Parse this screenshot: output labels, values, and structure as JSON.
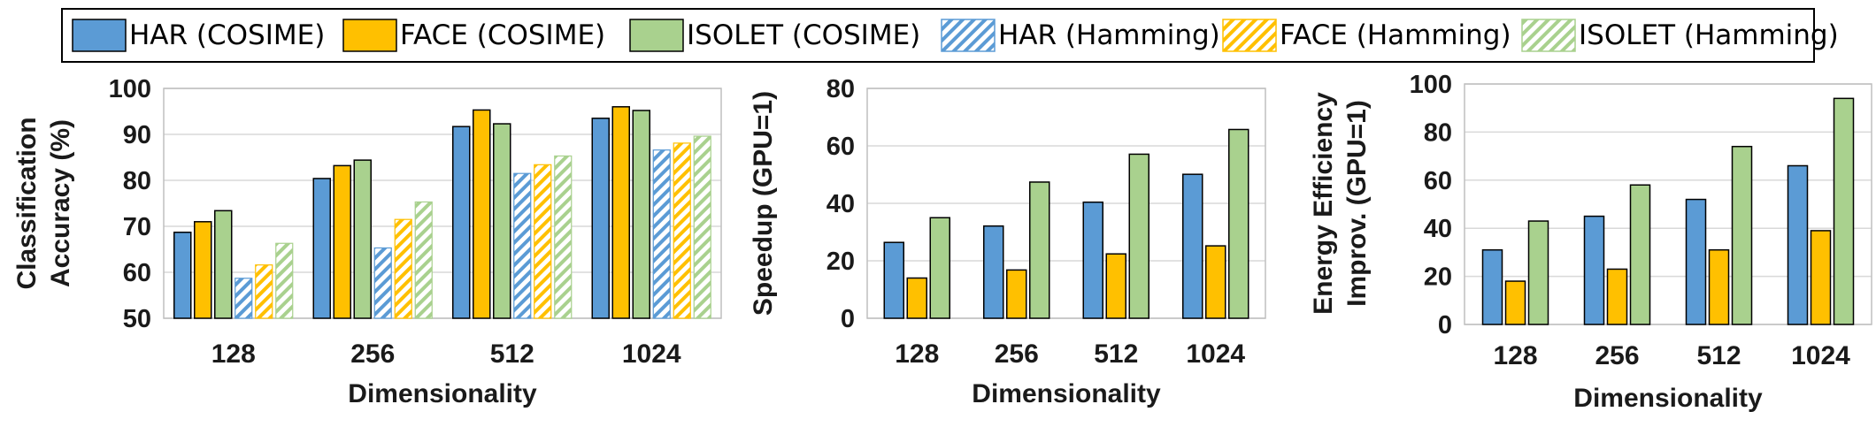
{
  "legend": [
    {
      "label": "HAR (COSIME)",
      "color": "#5b9bd5",
      "pattern": "solid",
      "icon": "solid-blue-swatch-icon"
    },
    {
      "label": "FACE (COSIME)",
      "color": "#ffc000",
      "pattern": "solid",
      "icon": "solid-yellow-swatch-icon"
    },
    {
      "label": "ISOLET (COSIME)",
      "color": "#a9d18e",
      "pattern": "solid",
      "icon": "solid-green-swatch-icon"
    },
    {
      "label": "HAR (Hamming)",
      "color": "#5b9bd5",
      "pattern": "hatch",
      "icon": "hatched-blue-swatch-icon"
    },
    {
      "label": "FACE (Hamming)",
      "color": "#ffc000",
      "pattern": "hatch",
      "icon": "hatched-yellow-swatch-icon"
    },
    {
      "label": "ISOLET (Hamming)",
      "color": "#a9d18e",
      "pattern": "hatch",
      "icon": "hatched-green-swatch-icon"
    }
  ],
  "chart_data": [
    {
      "type": "bar",
      "xlabel": "Dimensionality",
      "ylabel": [
        "Classification",
        "Accuracy (%)"
      ],
      "categories": [
        "128",
        "256",
        "512",
        "1024"
      ],
      "ylim": [
        50,
        100
      ],
      "yticks": [
        50,
        60,
        70,
        80,
        90,
        100
      ],
      "grid": true,
      "series": [
        {
          "name": "HAR (COSIME)",
          "color": "#5b9bd5",
          "pattern": "solid",
          "values": [
            68.7,
            80.4,
            91.7,
            93.5
          ]
        },
        {
          "name": "FACE (COSIME)",
          "color": "#ffc000",
          "pattern": "solid",
          "values": [
            71.0,
            83.2,
            95.3,
            96.0
          ]
        },
        {
          "name": "ISOLET (COSIME)",
          "color": "#a9d18e",
          "pattern": "solid",
          "values": [
            73.4,
            84.4,
            92.3,
            95.2
          ]
        },
        {
          "name": "HAR (Hamming)",
          "color": "#5b9bd5",
          "pattern": "hatch",
          "values": [
            58.7,
            65.3,
            81.5,
            86.6
          ]
        },
        {
          "name": "FACE (Hamming)",
          "color": "#ffc000",
          "pattern": "hatch",
          "values": [
            61.6,
            71.5,
            83.4,
            88.1
          ]
        },
        {
          "name": "ISOLET (Hamming)",
          "color": "#a9d18e",
          "pattern": "hatch",
          "values": [
            66.3,
            75.3,
            85.3,
            89.6
          ]
        }
      ]
    },
    {
      "type": "bar",
      "xlabel": "Dimensionality",
      "ylabel": [
        "Speedup (GPU=1)"
      ],
      "categories": [
        "128",
        "256",
        "512",
        "1024"
      ],
      "ylim": [
        0,
        80
      ],
      "yticks": [
        0,
        20,
        40,
        60,
        80
      ],
      "grid": true,
      "series": [
        {
          "name": "HAR (COSIME)",
          "color": "#5b9bd5",
          "pattern": "solid",
          "values": [
            26.4,
            32.1,
            40.4,
            50.1
          ]
        },
        {
          "name": "FACE (COSIME)",
          "color": "#ffc000",
          "pattern": "solid",
          "values": [
            14.0,
            16.8,
            22.4,
            25.2
          ]
        },
        {
          "name": "ISOLET (COSIME)",
          "color": "#a9d18e",
          "pattern": "solid",
          "values": [
            35.0,
            47.4,
            57.1,
            65.7
          ]
        }
      ]
    },
    {
      "type": "bar",
      "xlabel": "Dimensionality",
      "ylabel": [
        "Energy Efficiency",
        "Improv. (GPU=1)"
      ],
      "categories": [
        "128",
        "256",
        "512",
        "1024"
      ],
      "ylim": [
        0,
        100
      ],
      "yticks": [
        0,
        20,
        40,
        60,
        80,
        100
      ],
      "grid": true,
      "series": [
        {
          "name": "HAR (COSIME)",
          "color": "#5b9bd5",
          "pattern": "solid",
          "values": [
            31.0,
            45.0,
            52.0,
            66.0
          ]
        },
        {
          "name": "FACE (COSIME)",
          "color": "#ffc000",
          "pattern": "solid",
          "values": [
            18.0,
            23.0,
            31.0,
            39.0
          ]
        },
        {
          "name": "ISOLET (COSIME)",
          "color": "#a9d18e",
          "pattern": "solid",
          "values": [
            43.0,
            58.0,
            74.0,
            94.0
          ]
        }
      ]
    }
  ]
}
